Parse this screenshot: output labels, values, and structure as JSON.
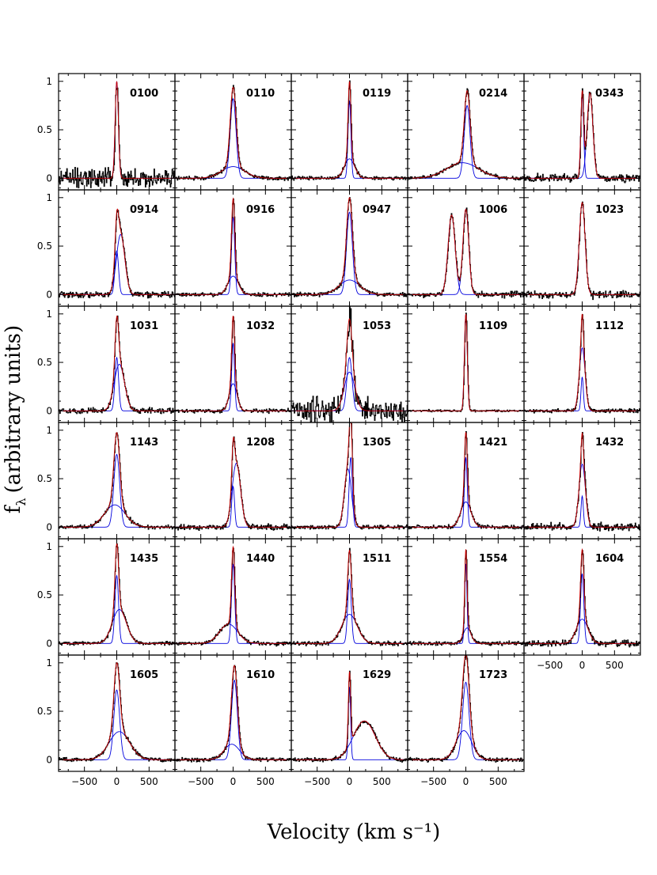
{
  "chart_data": {
    "type": "line",
    "title": "",
    "xlabel": "Velocity (km s⁻¹)",
    "ylabel": "fλ (arbitrary units)",
    "ylabel_main": "f",
    "ylabel_sub": "λ",
    "ylabel_rest": "(arbitrary units)",
    "xlim": [
      -900,
      900
    ],
    "ylim": [
      -0.12,
      1.08
    ],
    "x_ticks": [
      -500,
      0,
      500
    ],
    "x_tick_labels": [
      "−500",
      "0",
      "500"
    ],
    "y_ticks": [
      0,
      0.5,
      1
    ],
    "y_tick_labels": [
      "0",
      "0.5",
      "1"
    ],
    "colors": {
      "data": "#000000",
      "fit": "#cc0000",
      "component": "#0000dd"
    },
    "panels": [
      {
        "id": "0100",
        "components": [
          {
            "center": 0,
            "sigma": 25,
            "amp": 1.0
          }
        ],
        "noise": 0.05
      },
      {
        "id": "0110",
        "components": [
          {
            "center": 0,
            "sigma": 45,
            "amp": 0.82
          },
          {
            "center": 0,
            "sigma": 180,
            "amp": 0.12
          }
        ],
        "noise": 0.01
      },
      {
        "id": "0119",
        "components": [
          {
            "center": 0,
            "sigma": 22,
            "amp": 0.8
          },
          {
            "center": 0,
            "sigma": 80,
            "amp": 0.2
          }
        ],
        "noise": 0.01
      },
      {
        "id": "0214",
        "components": [
          {
            "center": 20,
            "sigma": 45,
            "amp": 0.75
          },
          {
            "center": -50,
            "sigma": 250,
            "amp": 0.16
          }
        ],
        "noise": 0.01
      },
      {
        "id": "0343",
        "components": [
          {
            "center": 0,
            "sigma": 22,
            "amp": 0.88
          },
          {
            "center": 120,
            "sigma": 45,
            "amp": 0.88
          }
        ],
        "noise": 0.02
      },
      {
        "id": "0914",
        "components": [
          {
            "center": 0,
            "sigma": 28,
            "amp": 0.45
          },
          {
            "center": 60,
            "sigma": 65,
            "amp": 0.62
          }
        ],
        "noise": 0.015
      },
      {
        "id": "0916",
        "components": [
          {
            "center": 0,
            "sigma": 25,
            "amp": 0.8
          },
          {
            "center": 0,
            "sigma": 80,
            "amp": 0.19
          }
        ],
        "noise": 0.01
      },
      {
        "id": "0947",
        "components": [
          {
            "center": 0,
            "sigma": 45,
            "amp": 0.85
          },
          {
            "center": 0,
            "sigma": 160,
            "amp": 0.15
          }
        ],
        "noise": 0.01
      },
      {
        "id": "1006",
        "components": [
          {
            "center": -220,
            "sigma": 55,
            "amp": 0.82
          },
          {
            "center": 0,
            "sigma": 45,
            "amp": 0.88
          }
        ],
        "noise": 0.015
      },
      {
        "id": "1023",
        "components": [
          {
            "center": 0,
            "sigma": 45,
            "amp": 0.95
          }
        ],
        "noise": 0.02
      },
      {
        "id": "1031",
        "components": [
          {
            "center": 0,
            "sigma": 28,
            "amp": 0.55
          },
          {
            "center": 40,
            "sigma": 80,
            "amp": 0.48
          }
        ],
        "noise": 0.015
      },
      {
        "id": "1032",
        "components": [
          {
            "center": 0,
            "sigma": 22,
            "amp": 0.7
          },
          {
            "center": 0,
            "sigma": 60,
            "amp": 0.28
          }
        ],
        "noise": 0.01
      },
      {
        "id": "1053",
        "components": [
          {
            "center": 0,
            "sigma": 40,
            "amp": 0.55
          },
          {
            "center": 0,
            "sigma": 80,
            "amp": 0.4
          }
        ],
        "noise": 0.07
      },
      {
        "id": "1109",
        "components": [
          {
            "center": 0,
            "sigma": 22,
            "amp": 1.0
          }
        ],
        "noise": 0.005
      },
      {
        "id": "1112",
        "components": [
          {
            "center": 0,
            "sigma": 18,
            "amp": 0.35
          },
          {
            "center": 0,
            "sigma": 45,
            "amp": 0.65
          }
        ],
        "noise": 0.01
      },
      {
        "id": "1143",
        "components": [
          {
            "center": 0,
            "sigma": 45,
            "amp": 0.75
          },
          {
            "center": -30,
            "sigma": 160,
            "amp": 0.23
          }
        ],
        "noise": 0.01
      },
      {
        "id": "1208",
        "components": [
          {
            "center": 0,
            "sigma": 22,
            "amp": 0.42
          },
          {
            "center": 50,
            "sigma": 65,
            "amp": 0.66
          }
        ],
        "noise": 0.015
      },
      {
        "id": "1305",
        "components": [
          {
            "center": -25,
            "sigma": 55,
            "amp": 0.6
          },
          {
            "center": 20,
            "sigma": 25,
            "amp": 0.72
          }
        ],
        "noise": 0.01
      },
      {
        "id": "1421",
        "components": [
          {
            "center": 0,
            "sigma": 22,
            "amp": 0.72
          },
          {
            "center": 0,
            "sigma": 80,
            "amp": 0.26
          }
        ],
        "noise": 0.01
      },
      {
        "id": "1432",
        "components": [
          {
            "center": 0,
            "sigma": 18,
            "amp": 0.32
          },
          {
            "center": 0,
            "sigma": 50,
            "amp": 0.65
          }
        ],
        "noise": 0.02
      },
      {
        "id": "1435",
        "components": [
          {
            "center": 0,
            "sigma": 28,
            "amp": 0.7
          },
          {
            "center": 40,
            "sigma": 110,
            "amp": 0.35
          }
        ],
        "noise": 0.01
      },
      {
        "id": "1440",
        "components": [
          {
            "center": 0,
            "sigma": 25,
            "amp": 0.82
          },
          {
            "center": -70,
            "sigma": 140,
            "amp": 0.2
          }
        ],
        "noise": 0.01
      },
      {
        "id": "1511",
        "components": [
          {
            "center": 0,
            "sigma": 28,
            "amp": 0.66
          },
          {
            "center": 0,
            "sigma": 120,
            "amp": 0.3
          }
        ],
        "noise": 0.01
      },
      {
        "id": "1554",
        "components": [
          {
            "center": 0,
            "sigma": 18,
            "amp": 0.82
          },
          {
            "center": 20,
            "sigma": 60,
            "amp": 0.16
          }
        ],
        "noise": 0.01
      },
      {
        "id": "1604",
        "components": [
          {
            "center": 0,
            "sigma": 25,
            "amp": 0.72
          },
          {
            "center": 0,
            "sigma": 90,
            "amp": 0.25
          }
        ],
        "noise": 0.015
      },
      {
        "id": "1605",
        "components": [
          {
            "center": 0,
            "sigma": 45,
            "amp": 0.72
          },
          {
            "center": 40,
            "sigma": 160,
            "amp": 0.29
          }
        ],
        "noise": 0.01
      },
      {
        "id": "1610",
        "components": [
          {
            "center": 20,
            "sigma": 45,
            "amp": 0.82
          },
          {
            "center": -20,
            "sigma": 120,
            "amp": 0.16
          }
        ],
        "noise": 0.01
      },
      {
        "id": "1629",
        "components": [
          {
            "center": 0,
            "sigma": 18,
            "amp": 0.75
          },
          {
            "center": 230,
            "sigma": 170,
            "amp": 0.4
          }
        ],
        "noise": 0.01
      },
      {
        "id": "1723",
        "components": [
          {
            "center": 0,
            "sigma": 50,
            "amp": 0.8
          },
          {
            "center": -30,
            "sigma": 120,
            "amp": 0.3
          }
        ],
        "noise": 0.01
      }
    ]
  }
}
